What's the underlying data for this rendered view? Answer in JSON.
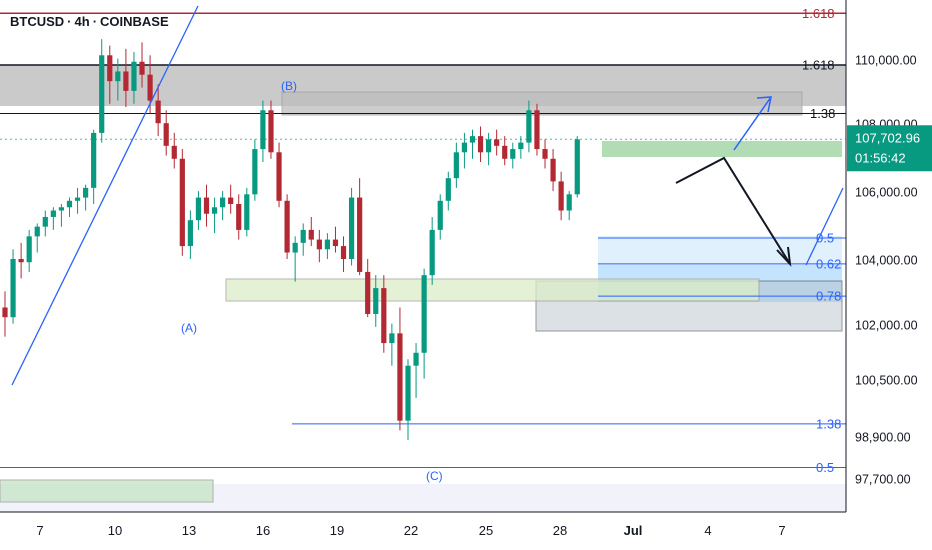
{
  "header": {
    "symbol": "BTCUSD",
    "interval": "4h",
    "exchange": "COINBASE",
    "separator": "·"
  },
  "price_tag": {
    "price": "107,702.96",
    "countdown": "01:56:42",
    "color": "#089981"
  },
  "colors": {
    "up": "#089981",
    "down": "#b22833",
    "line": "#2962ff",
    "red_line": "#b22833",
    "level_line": "#131722"
  },
  "chart_data": {
    "type": "candlestick",
    "y_axis_labels": [
      "110,000.00",
      "108,000.00",
      "106,000.00",
      "104,000.00",
      "102,000.00",
      "100,500.00",
      "98,900.00",
      "97,700.00"
    ],
    "x_axis_labels": [
      "7",
      "10",
      "13",
      "16",
      "19",
      "22",
      "25",
      "28",
      "Jul",
      "4",
      "7"
    ],
    "fib_levels": [
      {
        "label": "1.618",
        "price": 111600,
        "color": "#b22833"
      },
      {
        "label": "1.618",
        "price": 110000,
        "color": "#131722"
      },
      {
        "label": "1.38",
        "price": 108500,
        "color": "#131722"
      },
      {
        "label": "0.5",
        "price": 104650,
        "color": "#2962ff"
      },
      {
        "label": "0.62",
        "price": 103850,
        "color": "#2962ff"
      },
      {
        "label": "0.78",
        "price": 102850,
        "color": "#2962ff"
      },
      {
        "label": "1.38",
        "price": 98900,
        "color": "#2962ff"
      },
      {
        "label": "0.5",
        "price": 97550,
        "color": "#2962ff"
      }
    ],
    "wave_labels": [
      "(A)",
      "(B)",
      "(C)"
    ],
    "last_price": 107702.96,
    "candles": [
      [
        102500,
        103000,
        101600,
        102200
      ],
      [
        102200,
        104300,
        102000,
        104000
      ],
      [
        104000,
        104500,
        103400,
        103900
      ],
      [
        103900,
        104900,
        103600,
        104700
      ],
      [
        104700,
        105100,
        104200,
        105000
      ],
      [
        105000,
        105500,
        104700,
        105300
      ],
      [
        105300,
        105600,
        104900,
        105500
      ],
      [
        105500,
        105700,
        105000,
        105600
      ],
      [
        105600,
        105900,
        105300,
        105800
      ],
      [
        105800,
        106200,
        105400,
        105900
      ],
      [
        105900,
        106300,
        105500,
        106200
      ],
      [
        106200,
        108000,
        105700,
        107900
      ],
      [
        107900,
        110800,
        107600,
        110300
      ],
      [
        110300,
        110600,
        108800,
        109500
      ],
      [
        109500,
        110200,
        108900,
        109800
      ],
      [
        109800,
        110500,
        108700,
        109200
      ],
      [
        109200,
        110400,
        108800,
        110100
      ],
      [
        110100,
        110700,
        109300,
        109700
      ],
      [
        109700,
        110300,
        108500,
        108900
      ],
      [
        108900,
        109400,
        107800,
        108200
      ],
      [
        108200,
        108600,
        107200,
        107500
      ],
      [
        107500,
        107900,
        106800,
        107100
      ],
      [
        107100,
        107400,
        104100,
        104400
      ],
      [
        104400,
        105500,
        104000,
        105200
      ],
      [
        105200,
        106100,
        104900,
        105900
      ],
      [
        105900,
        106300,
        105000,
        105400
      ],
      [
        105400,
        105900,
        104800,
        105600
      ],
      [
        105600,
        106100,
        105200,
        105900
      ],
      [
        105900,
        106300,
        105400,
        105700
      ],
      [
        105700,
        106000,
        104600,
        104900
      ],
      [
        104900,
        106200,
        104700,
        106000
      ],
      [
        106000,
        107700,
        105800,
        107400
      ],
      [
        107400,
        108900,
        107000,
        108600
      ],
      [
        108600,
        108900,
        107100,
        107300
      ],
      [
        107300,
        107600,
        105600,
        105800
      ],
      [
        105800,
        106000,
        104000,
        104200
      ],
      [
        104200,
        104700,
        103300,
        104500
      ],
      [
        104500,
        105100,
        104100,
        104900
      ],
      [
        104900,
        105300,
        104400,
        104600
      ],
      [
        104600,
        104900,
        103900,
        104300
      ],
      [
        104300,
        104800,
        104000,
        104600
      ],
      [
        104600,
        105000,
        104200,
        104400
      ],
      [
        104400,
        104700,
        103600,
        104000
      ],
      [
        104000,
        106200,
        103800,
        105900
      ],
      [
        105900,
        106500,
        103500,
        103600
      ],
      [
        103600,
        104000,
        102200,
        102300
      ],
      [
        102300,
        103500,
        101900,
        103100
      ],
      [
        103100,
        103500,
        101100,
        101400
      ],
      [
        101400,
        102000,
        100700,
        101700
      ],
      [
        101700,
        102500,
        98700,
        99000
      ],
      [
        99000,
        100900,
        98400,
        100700
      ],
      [
        100700,
        101400,
        99700,
        101100
      ],
      [
        101100,
        103700,
        100300,
        103500
      ],
      [
        103500,
        105300,
        103200,
        104900
      ],
      [
        104900,
        106000,
        104600,
        105800
      ],
      [
        105800,
        106700,
        105500,
        106500
      ],
      [
        106500,
        107600,
        106200,
        107300
      ],
      [
        107300,
        107900,
        106800,
        107600
      ],
      [
        107600,
        108000,
        107100,
        107800
      ],
      [
        107800,
        108100,
        107000,
        107300
      ],
      [
        107300,
        107900,
        106900,
        107700
      ],
      [
        107700,
        108000,
        107200,
        107500
      ],
      [
        107500,
        107800,
        106900,
        107100
      ],
      [
        107100,
        107600,
        106800,
        107400
      ],
      [
        107400,
        107800,
        107100,
        107600
      ],
      [
        107600,
        108900,
        107300,
        108600
      ],
      [
        108600,
        108800,
        107200,
        107400
      ],
      [
        107400,
        107700,
        106800,
        107100
      ],
      [
        107100,
        107400,
        106100,
        106400
      ],
      [
        106400,
        106700,
        105200,
        105500
      ],
      [
        105500,
        106100,
        105200,
        106000
      ],
      [
        106000,
        107800,
        105900,
        107700
      ]
    ]
  }
}
